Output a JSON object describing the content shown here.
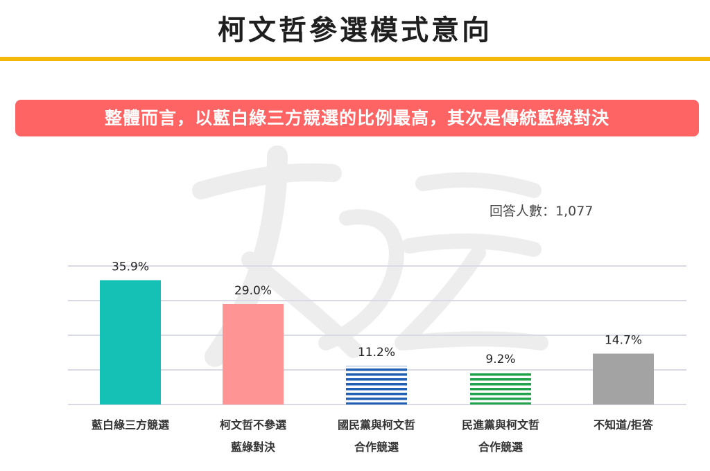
{
  "page": {
    "title": "柯文哲參選模式意向",
    "subtitle": "整體而言，以藍白綠三方競選的比例最高，其次是傳統藍綠對決",
    "respondents_label": "回答人數：",
    "respondents_value": "1,077"
  },
  "colors": {
    "title_bar": "#f5b80a",
    "subtitle_bg": "#ff6464",
    "grid": "#dadae6"
  },
  "chart_data": {
    "type": "bar",
    "ylim": [
      0,
      40
    ],
    "grid": true,
    "categories": [
      {
        "line1": "藍白綠三方競選",
        "line2": ""
      },
      {
        "line1": "柯文哲不參選",
        "line2": "藍綠對決"
      },
      {
        "line1": "國民黨與柯文哲",
        "line2": "合作競選"
      },
      {
        "line1": "民進黨與柯文哲",
        "line2": "合作競選"
      },
      {
        "line1": "不知道/拒答",
        "line2": ""
      }
    ],
    "values": [
      35.9,
      29.0,
      11.2,
      9.2,
      14.7
    ],
    "value_labels": [
      "35.9%",
      "29.0%",
      "11.2%",
      "9.2%",
      "14.7%"
    ],
    "bar_colors": [
      "#15c1b4",
      "#ff9494",
      "#1f5fb4",
      "#20a34a",
      "#a3a3a3"
    ],
    "bar_patterns": [
      "solid",
      "solid",
      "stripes",
      "stripes",
      "solid"
    ]
  }
}
